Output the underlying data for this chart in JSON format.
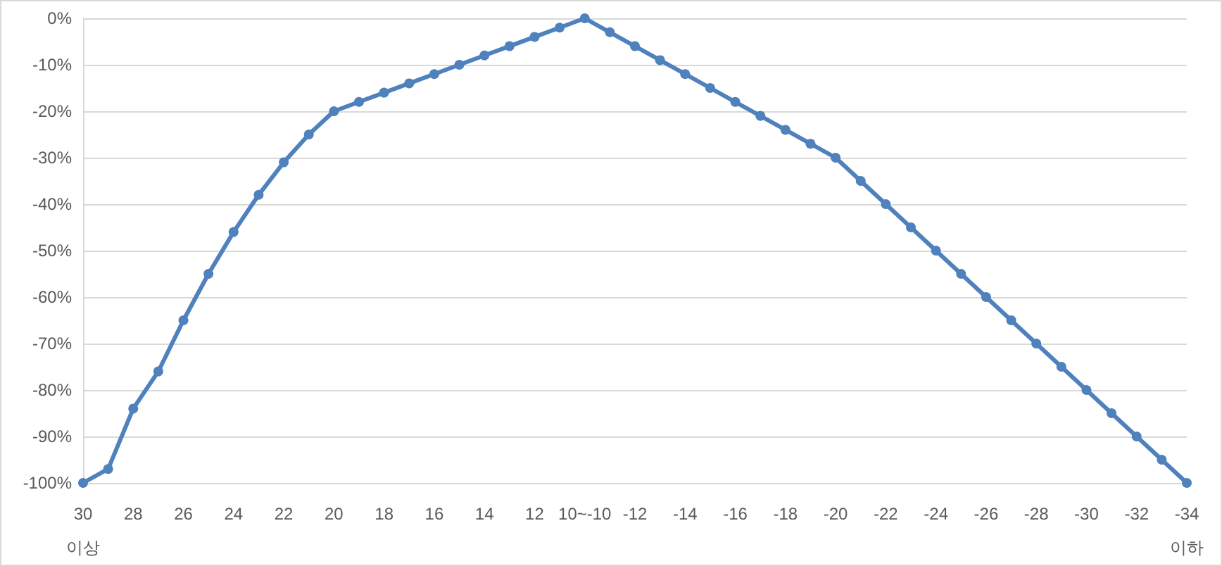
{
  "chart_data": {
    "type": "line",
    "categories": [
      "30\n이상",
      null,
      "28",
      null,
      "26",
      null,
      "24",
      null,
      "22",
      null,
      "20",
      null,
      "18",
      null,
      "16",
      null,
      "14",
      null,
      "12",
      null,
      "10~-10",
      null,
      "-12",
      null,
      "-14",
      null,
      "-16",
      null,
      "-18",
      null,
      "-20",
      null,
      "-22",
      null,
      "-24",
      null,
      "-26",
      null,
      "-28",
      null,
      "-30",
      null,
      "-32",
      null,
      "-34\n이하"
    ],
    "series": [
      {
        "color": "#4f81bd",
        "values": [
          -100,
          -97,
          -84,
          -76,
          -65,
          -55,
          -46,
          -38,
          -31,
          -25,
          -20,
          -18,
          -16,
          -14,
          -12,
          -10,
          -8,
          -6,
          -4,
          -2,
          0,
          -3,
          -6,
          -9,
          -12,
          -15,
          -18,
          -21,
          -24,
          -27,
          -30,
          -35,
          -40,
          -45,
          -50,
          -55,
          -60,
          -65,
          -70,
          -75,
          -80,
          -85,
          -90,
          -95,
          -100
        ]
      }
    ],
    "ylim": [
      -100,
      0
    ],
    "yticks": [
      {
        "value": -100,
        "label": "-100%"
      },
      {
        "value": -90,
        "label": "-90%"
      },
      {
        "value": -80,
        "label": "-80%"
      },
      {
        "value": -70,
        "label": "-70%"
      },
      {
        "value": -60,
        "label": "-60%"
      },
      {
        "value": -50,
        "label": "-50%"
      },
      {
        "value": -40,
        "label": "-40%"
      },
      {
        "value": -30,
        "label": "-30%"
      },
      {
        "value": -20,
        "label": "-20%"
      },
      {
        "value": -10,
        "label": "-10%"
      },
      {
        "value": 0,
        "label": "0%"
      }
    ],
    "grid": "y",
    "marker": "circle",
    "line_style": "solid"
  }
}
